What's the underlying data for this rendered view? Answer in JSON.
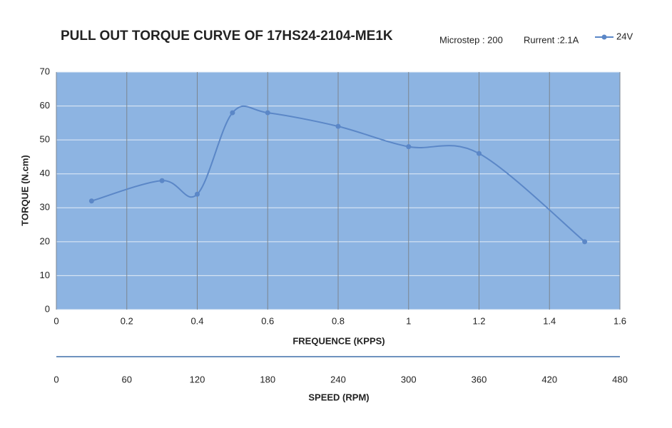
{
  "chart_data": {
    "type": "line",
    "title": "PULL OUT TORQUE CURVE OF 17HS24-2104-ME1K",
    "annotations": [
      "Microstep : 200",
      "Rurrent :2.1A"
    ],
    "x_label": "FREQUENCE (KPPS)",
    "y_label": "TORQUE (N.cm)",
    "x2_label": "SPEED (RPM)",
    "x": [
      0.1,
      0.3,
      0.4,
      0.5,
      0.6,
      0.8,
      1.0,
      1.2,
      1.5
    ],
    "series": [
      {
        "name": "24V",
        "color": "#5b87c7",
        "values": [
          32,
          38,
          34,
          58,
          58,
          54,
          48,
          46,
          20
        ]
      }
    ],
    "xlim": [
      0,
      1.6
    ],
    "xticks": [
      0,
      0.2,
      0.4,
      0.6,
      0.8,
      1,
      1.2,
      1.4,
      1.6
    ],
    "ylim": [
      0,
      70
    ],
    "yticks": [
      0,
      10,
      20,
      30,
      40,
      50,
      60,
      70
    ],
    "x2lim": [
      0,
      480
    ],
    "x2ticks": [
      0,
      60,
      120,
      180,
      240,
      300,
      360,
      420,
      480
    ],
    "plot_color": "#8db4e2",
    "grid": true,
    "legend": "top-right"
  }
}
